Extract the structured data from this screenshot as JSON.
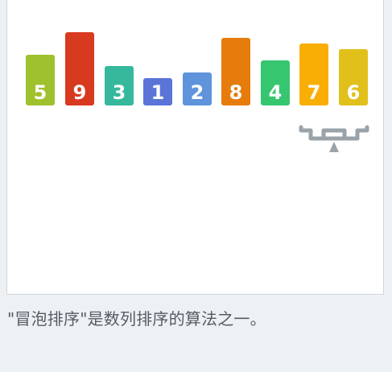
{
  "bars": [
    {
      "value": "5",
      "color": "#a0c12e"
    },
    {
      "value": "9",
      "color": "#d83a20"
    },
    {
      "value": "3",
      "color": "#36b89d"
    },
    {
      "value": "1",
      "color": "#5b74d8"
    },
    {
      "value": "2",
      "color": "#5f93dc"
    },
    {
      "value": "8",
      "color": "#e67c0b"
    },
    {
      "value": "4",
      "color": "#36c66f"
    },
    {
      "value": "7",
      "color": "#f9ae05"
    },
    {
      "value": "6",
      "color": "#e2c01b"
    }
  ],
  "scale_icon": "balance-scale-icon",
  "caption": "\"冒泡排序\"是数列排序的算法之一。"
}
